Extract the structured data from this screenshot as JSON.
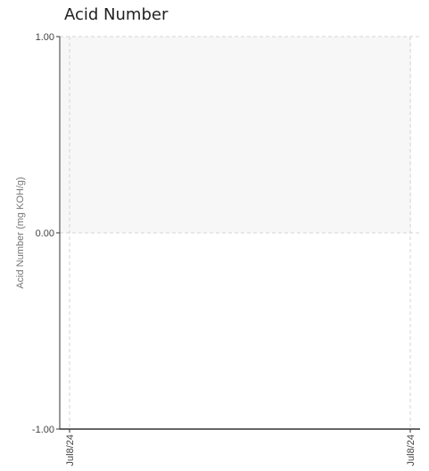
{
  "chart_data": {
    "type": "line",
    "title": "Acid Number",
    "ylabel": "Acid Number (mg KOH/g)",
    "xlabel": "",
    "ylim": [
      -1.0,
      1.0
    ],
    "y_ticks": [
      "1.00",
      "0.00",
      "-1.00"
    ],
    "x_ticks": [
      "Jul8/24",
      "Jul8/24"
    ],
    "grid": true,
    "series": [],
    "colors": {
      "band": "#f7f7f7",
      "grid": "#d4d4d4",
      "axis": "#333333"
    }
  }
}
